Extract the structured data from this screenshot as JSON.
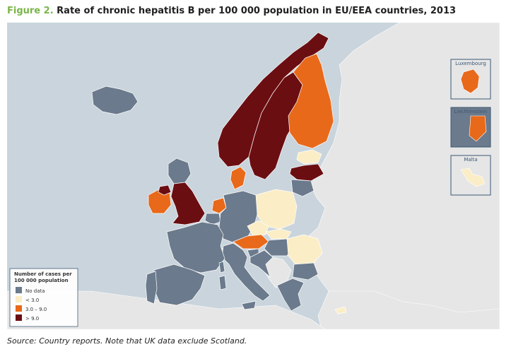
{
  "title": {
    "label": "Figure 2.",
    "text": "Rate of chronic hepatitis B per 100 000 population in EU/EEA countries, 2013"
  },
  "source": "Source: Country reports. Note that UK data exclude Scotland.",
  "colors": {
    "sea": "#c9d4dc",
    "non_eu": "#e6e6e6",
    "no_data": "#6b7a8c",
    "lt3": "#fbedc6",
    "c3to9": "#e8691a",
    "gt9": "#6b0e12",
    "border": "#ffffff",
    "inset_border": "#3b5875"
  },
  "legend": {
    "title_line1": "Number of cases per",
    "title_line2": "100 000 population",
    "items": [
      {
        "label": "No data",
        "class": "no_data"
      },
      {
        "label": "< 3.0",
        "class": "lt3"
      },
      {
        "label": "3.0 – 9.0",
        "class": "c3to9"
      },
      {
        "label": "> 9.0",
        "class": "gt9"
      }
    ]
  },
  "insets": [
    {
      "label": "Luxembourg",
      "class": "c3to9"
    },
    {
      "label": "Liechtenstein",
      "class": "c3to9"
    },
    {
      "label": "Malta",
      "class": "lt3"
    }
  ],
  "countries": {
    "Iceland": "no_data",
    "Norway": "gt9",
    "Sweden": "gt9",
    "Finland": "c3to9",
    "Estonia": "lt3",
    "Latvia": "gt9",
    "Lithuania": "no_data",
    "Denmark": "c3to9",
    "Ireland": "c3to9",
    "Northern Ireland (UK)": "gt9",
    "United Kingdom (excl. Scotland)": "gt9",
    "Scotland": "no_data",
    "Netherlands": "c3to9",
    "Belgium": "no_data",
    "Germany": "no_data",
    "Poland": "lt3",
    "Czech Republic": "lt3",
    "Slovakia": "lt3",
    "Austria": "c3to9",
    "Hungary": "no_data",
    "Slovenia": "no_data",
    "Croatia": "no_data",
    "Romania": "lt3",
    "Bulgaria": "no_data",
    "Greece": "no_data",
    "Cyprus": "lt3",
    "Italy": "no_data",
    "France": "no_data",
    "Spain": "no_data",
    "Portugal": "no_data",
    "Liechtenstein": "c3to9",
    "Luxembourg": "c3to9",
    "Malta": "lt3"
  }
}
